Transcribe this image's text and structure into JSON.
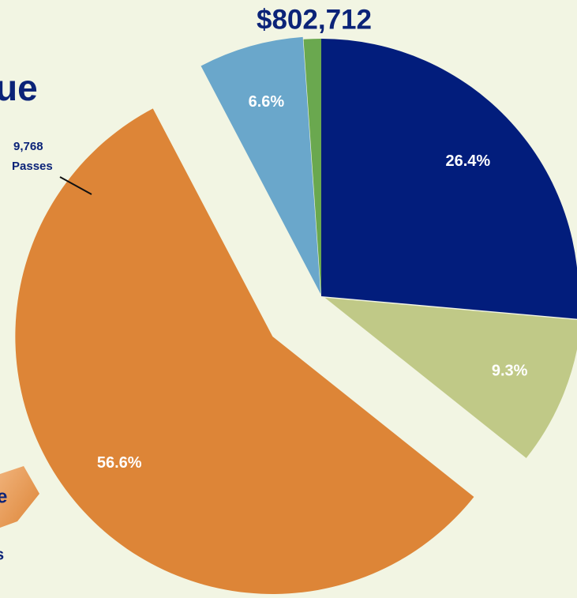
{
  "chart_data": {
    "type": "pie",
    "title": "ue",
    "total_label": "$802,712",
    "values": [
      26.4,
      9.3,
      56.6,
      6.6,
      1.1
    ],
    "value_labels": [
      "26.4%",
      "9.3%",
      "56.6%",
      "6.6%",
      null
    ],
    "colors": [
      "#021d7c",
      "#c0c987",
      "#dd8537",
      "#6aa7cb",
      "#6aa84f"
    ],
    "annotations": [
      "9,768",
      "Passes",
      "e",
      "s"
    ]
  }
}
